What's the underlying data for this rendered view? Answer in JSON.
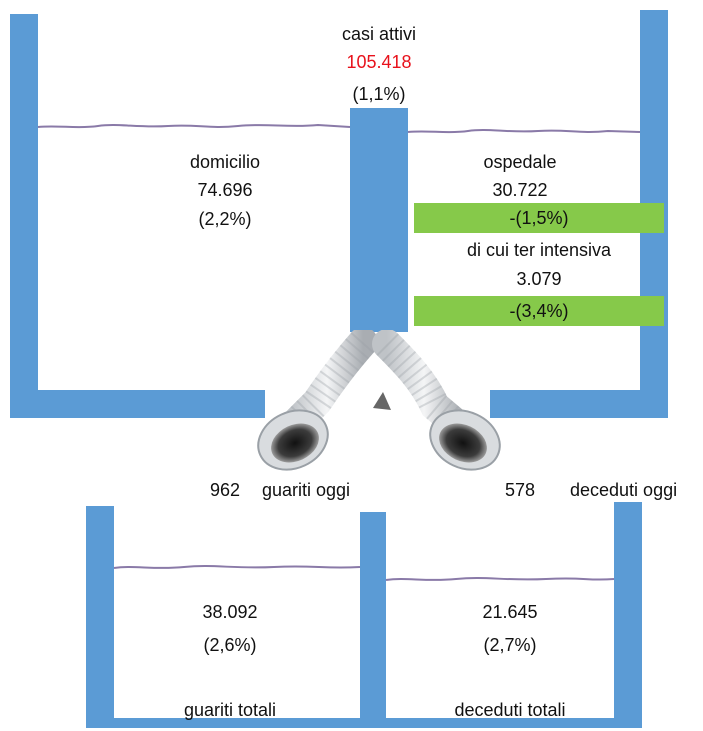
{
  "active": {
    "label": "casi attivi",
    "value": "105.418",
    "pct": "(1,1%)"
  },
  "home": {
    "label": "domicilio",
    "value": "74.696",
    "pct": "(2,2%)"
  },
  "hospital": {
    "label": "ospedale",
    "value": "30.722",
    "change": "-(1,5%)",
    "icu_label": "di cui ter intensiva",
    "icu_value": "3.079",
    "icu_change": "-(3,4%)"
  },
  "today": {
    "recovered_value": "962",
    "recovered_label": "guariti oggi",
    "deaths_value": "578",
    "deaths_label": "deceduti oggi"
  },
  "totals": {
    "recovered_value": "38.092",
    "recovered_pct": "(2,6%)",
    "recovered_label": "guariti totali",
    "deaths_value": "21.645",
    "deaths_pct": "(2,7%)",
    "deaths_label": "deceduti totali"
  },
  "colors": {
    "tank": "#5b9bd5",
    "highlight": "#86c94a",
    "alert_text": "#e8121c",
    "water_line": "#8a7aa8"
  },
  "icons": [
    "hose-left-icon",
    "hose-right-icon"
  ]
}
